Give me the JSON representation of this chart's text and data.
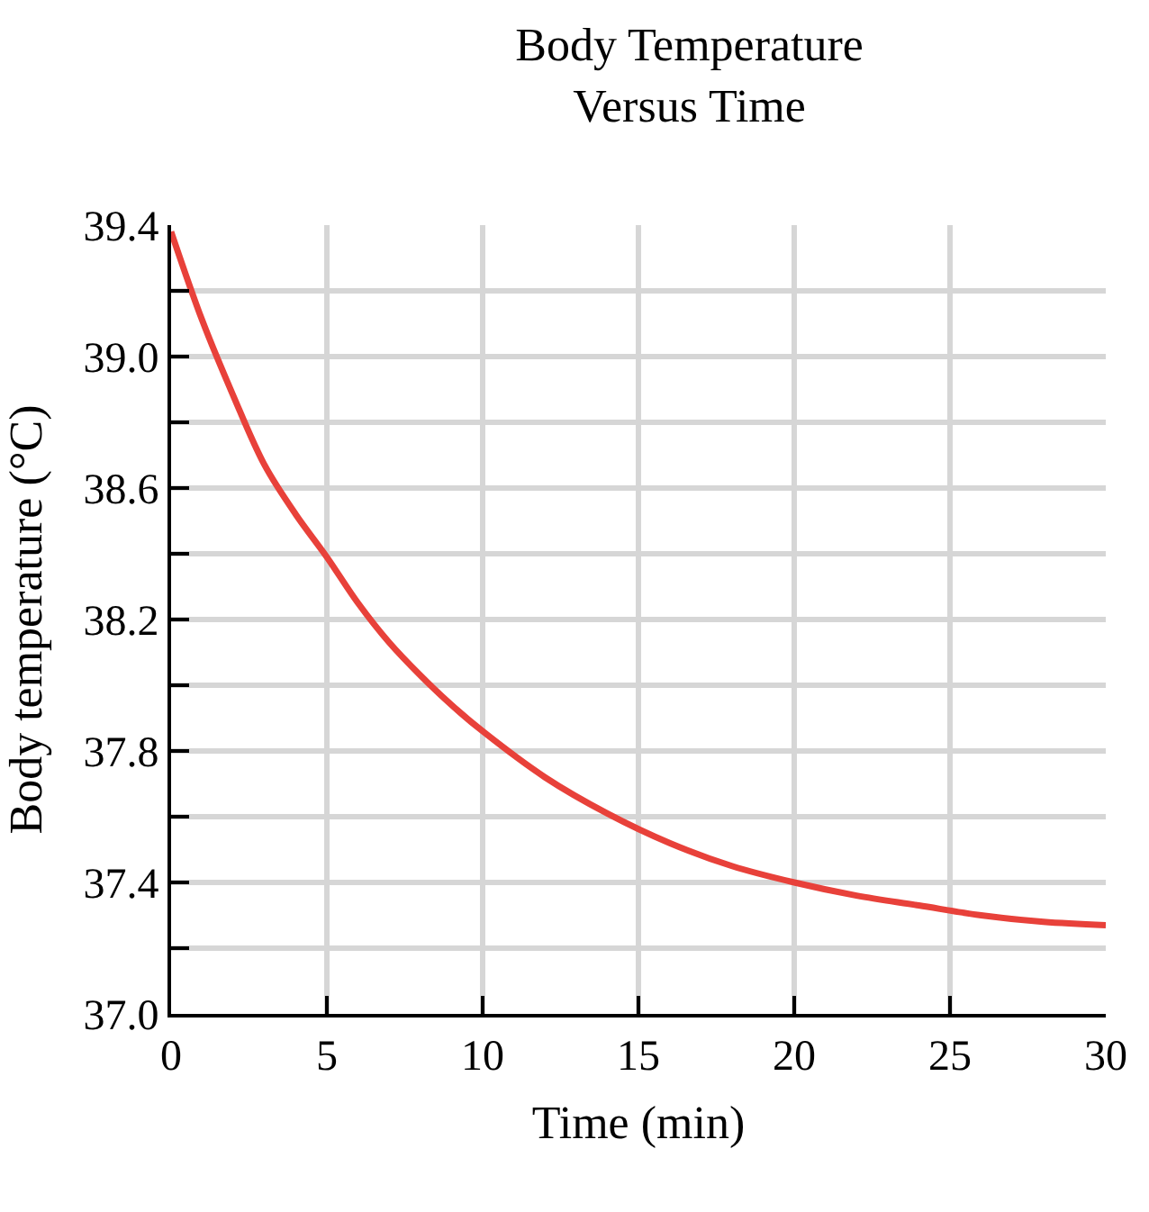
{
  "chart_data": {
    "type": "line",
    "title": "Body Temperature\nVersus Time",
    "xlabel": "Time (min)",
    "ylabel": "Body temperature (°C)",
    "x": [
      0,
      1,
      2,
      3,
      4,
      5,
      6,
      7,
      8,
      9,
      10,
      12,
      14,
      16,
      18,
      20,
      22,
      24,
      26,
      28,
      30
    ],
    "series": [
      {
        "color": "#e8413a",
        "values": [
          39.38,
          39.11,
          38.88,
          38.67,
          38.52,
          38.39,
          38.25,
          38.13,
          38.03,
          37.94,
          37.86,
          37.72,
          37.61,
          37.52,
          37.45,
          37.4,
          37.36,
          37.33,
          37.3,
          37.28,
          37.27
        ]
      }
    ],
    "xlim": [
      0,
      30
    ],
    "xticks": [
      0,
      5,
      10,
      15,
      20,
      25,
      30
    ],
    "ylim": [
      37.0,
      39.4
    ],
    "yticks": [
      {
        "value": 37.0,
        "label": "37.0"
      },
      {
        "value": 37.2,
        "label": null
      },
      {
        "value": 37.4,
        "label": "37.4"
      },
      {
        "value": 37.6,
        "label": null
      },
      {
        "value": 37.8,
        "label": "37.8"
      },
      {
        "value": 38.0,
        "label": null
      },
      {
        "value": 38.2,
        "label": "38.2"
      },
      {
        "value": 38.4,
        "label": null
      },
      {
        "value": 38.6,
        "label": "38.6"
      },
      {
        "value": 38.8,
        "label": null
      },
      {
        "value": 39.0,
        "label": "39.0"
      },
      {
        "value": 39.2,
        "label": null
      },
      {
        "value": 39.4,
        "label": "39.4"
      }
    ],
    "grid": true,
    "marker": "none",
    "line_style": "solid",
    "legend": false
  }
}
